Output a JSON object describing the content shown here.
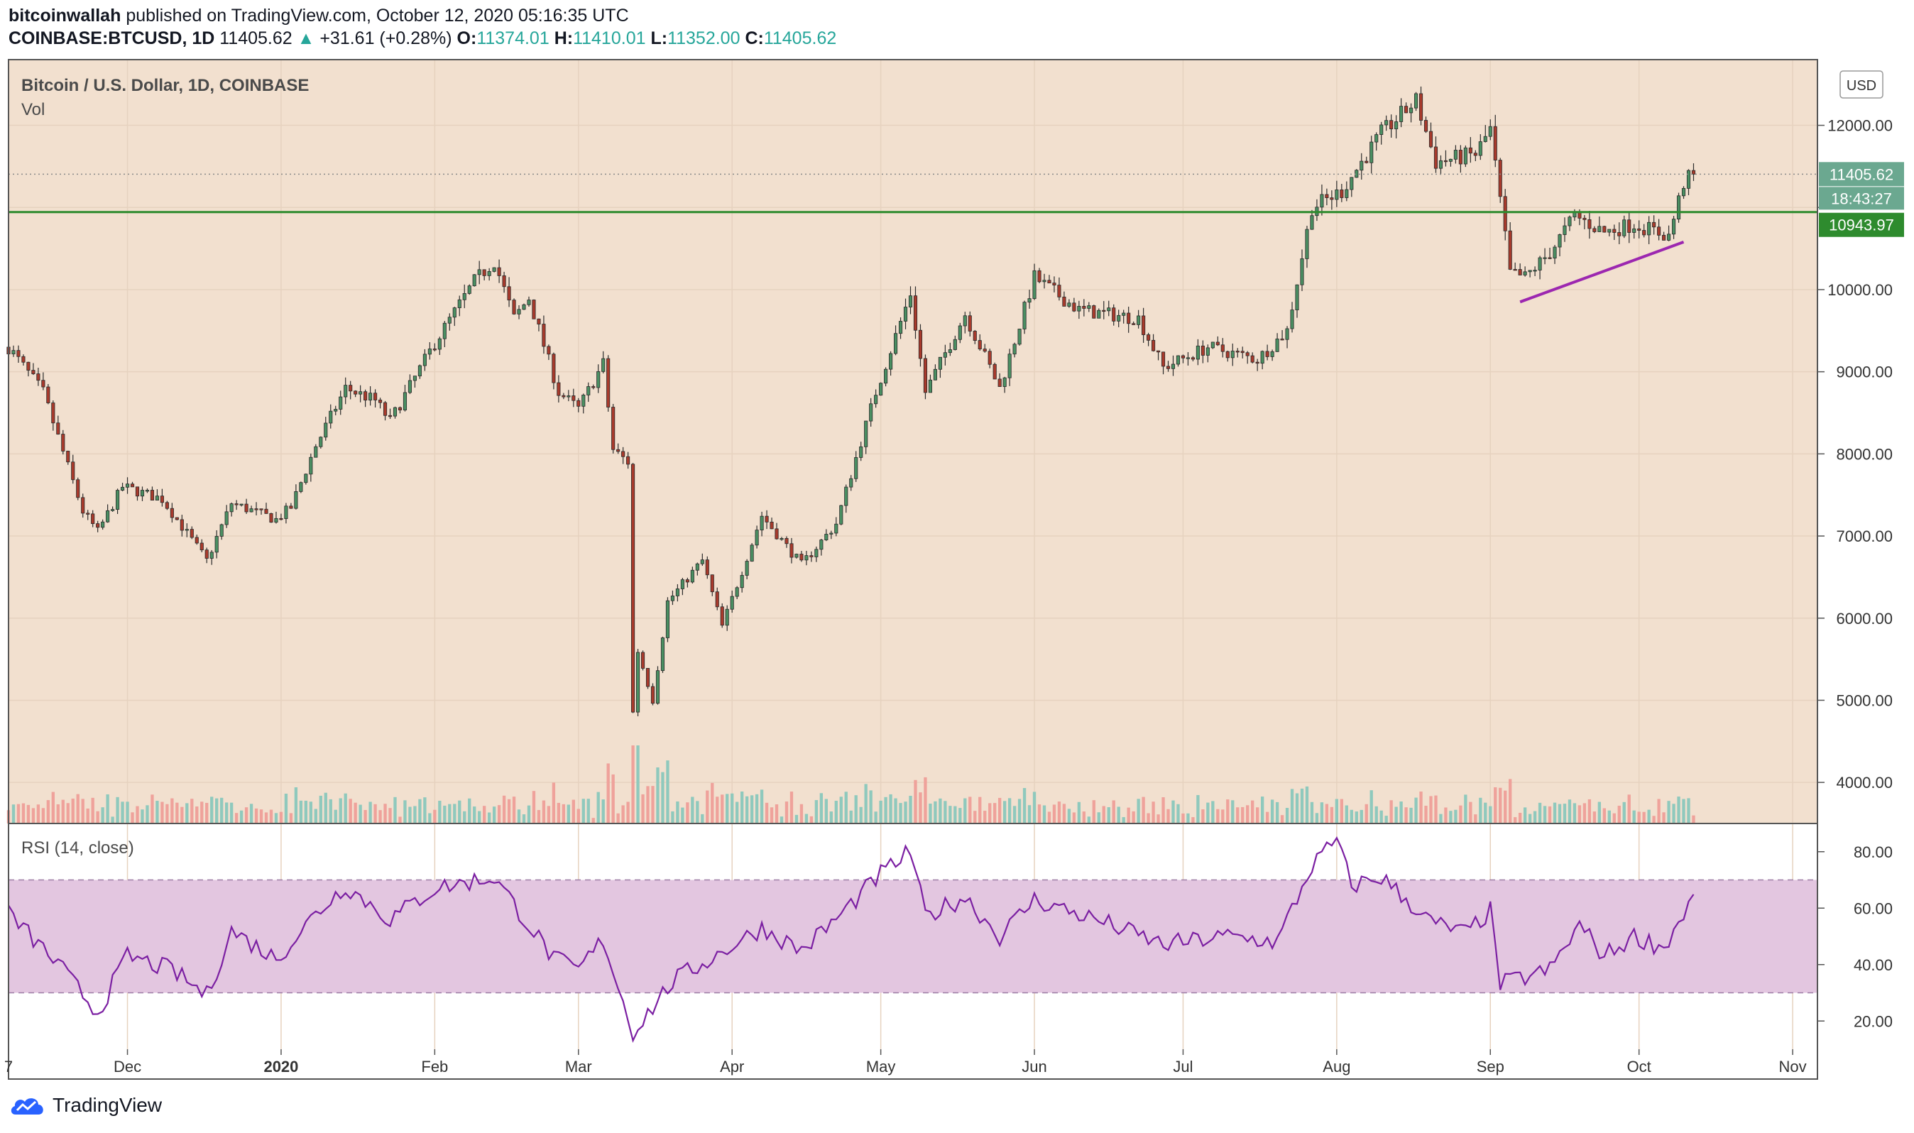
{
  "header": {
    "author": "bitcoinwallah",
    "published_text": "published on TradingView.com, October 12, 2020 05:16:35 UTC",
    "symbol": "COINBASE:BTCUSD, 1D",
    "last": "11405.62",
    "change": "+31.61 (+0.28%)",
    "open_label": "O:",
    "open": "11374.01",
    "high_label": "H:",
    "high": "11410.01",
    "low_label": "L:",
    "low": "11352.00",
    "close_label": "C:",
    "close": "11405.62"
  },
  "pane": {
    "title": "Bitcoin / U.S. Dollar, 1D, COINBASE",
    "vol_label": "Vol",
    "currency": "USD",
    "rsi_title": "RSI (14, close)",
    "price_badge": "11405.62",
    "countdown_badge": "18:43:27",
    "level_badge": "10943.97"
  },
  "footer": {
    "brand": "TradingView"
  },
  "colors": {
    "background": "#f2e0cf",
    "up": "#26a69a",
    "down": "#ef5350",
    "candle_body_up": "#4a8f62",
    "candle_body_down": "#a83a2c",
    "level_line": "#2e8b2e",
    "trendline": "#9c27b0",
    "rsi_line": "#7b1fa2",
    "rsi_band": "#e3c6e0"
  },
  "chart_data": {
    "type": "candlestick",
    "title": "Bitcoin / U.S. Dollar, 1D, COINBASE",
    "price_axis": {
      "min": 3500,
      "max": 12800,
      "ticks": [
        12000,
        11000,
        10000,
        9000,
        8000,
        7000,
        6000,
        5000,
        4000
      ],
      "tick_labels": [
        "12000.00",
        "",
        "10000.00",
        "9000.00",
        "8000.00",
        "7000.00",
        "6000.00",
        "5000.00",
        "4000.00"
      ]
    },
    "rsi_axis": {
      "min": 10,
      "max": 90,
      "ticks": [
        80,
        60,
        40,
        20
      ],
      "tick_labels": [
        "80.00",
        "60.00",
        "40.00",
        "20.00"
      ],
      "band": [
        30,
        70
      ]
    },
    "time_axis": {
      "start": "2019-11-07",
      "end": "2020-11-06",
      "labels": [
        {
          "date": "2019-11-07",
          "text": "7"
        },
        {
          "date": "2019-12-01",
          "text": "Dec"
        },
        {
          "date": "2020-01-01",
          "text": "2020"
        },
        {
          "date": "2020-02-01",
          "text": "Feb"
        },
        {
          "date": "2020-03-01",
          "text": "Mar"
        },
        {
          "date": "2020-04-01",
          "text": "Apr"
        },
        {
          "date": "2020-05-01",
          "text": "May"
        },
        {
          "date": "2020-06-01",
          "text": "Jun"
        },
        {
          "date": "2020-07-01",
          "text": "Jul"
        },
        {
          "date": "2020-08-01",
          "text": "Aug"
        },
        {
          "date": "2020-09-01",
          "text": "Sep"
        },
        {
          "date": "2020-10-01",
          "text": "Oct"
        },
        {
          "date": "2020-11-01",
          "text": "Nov"
        }
      ]
    },
    "price_keyframes": [
      {
        "date": "2019-11-07",
        "close": 9300
      },
      {
        "date": "2019-11-14",
        "close": 8750
      },
      {
        "date": "2019-11-22",
        "close": 7300
      },
      {
        "date": "2019-11-25",
        "close": 7050
      },
      {
        "date": "2019-11-30",
        "close": 7600
      },
      {
        "date": "2019-12-08",
        "close": 7450
      },
      {
        "date": "2019-12-17",
        "close": 6700
      },
      {
        "date": "2019-12-22",
        "close": 7400
      },
      {
        "date": "2019-12-31",
        "close": 7200
      },
      {
        "date": "2020-01-03",
        "close": 7350
      },
      {
        "date": "2020-01-08",
        "close": 8100
      },
      {
        "date": "2020-01-14",
        "close": 8800
      },
      {
        "date": "2020-01-20",
        "close": 8650
      },
      {
        "date": "2020-01-23",
        "close": 8400
      },
      {
        "date": "2020-02-01",
        "close": 9350
      },
      {
        "date": "2020-02-09",
        "close": 10100
      },
      {
        "date": "2020-02-13",
        "close": 10350
      },
      {
        "date": "2020-02-17",
        "close": 9650
      },
      {
        "date": "2020-02-20",
        "close": 9900
      },
      {
        "date": "2020-02-26",
        "close": 8750
      },
      {
        "date": "2020-03-01",
        "close": 8550
      },
      {
        "date": "2020-03-06",
        "close": 9100
      },
      {
        "date": "2020-03-08",
        "close": 8050
      },
      {
        "date": "2020-03-11",
        "close": 7900
      },
      {
        "date": "2020-03-12",
        "close": 4850
      },
      {
        "date": "2020-03-13",
        "close": 5600
      },
      {
        "date": "2020-03-16",
        "close": 5000
      },
      {
        "date": "2020-03-19",
        "close": 6200
      },
      {
        "date": "2020-03-26",
        "close": 6700
      },
      {
        "date": "2020-03-30",
        "close": 5900
      },
      {
        "date": "2020-04-07",
        "close": 7250
      },
      {
        "date": "2020-04-15",
        "close": 6650
      },
      {
        "date": "2020-04-22",
        "close": 7150
      },
      {
        "date": "2020-04-30",
        "close": 8750
      },
      {
        "date": "2020-05-07",
        "close": 9950
      },
      {
        "date": "2020-05-10",
        "close": 8750
      },
      {
        "date": "2020-05-18",
        "close": 9700
      },
      {
        "date": "2020-05-25",
        "close": 8800
      },
      {
        "date": "2020-06-01",
        "close": 10150
      },
      {
        "date": "2020-06-10",
        "close": 9750
      },
      {
        "date": "2020-06-22",
        "close": 9650
      },
      {
        "date": "2020-06-27",
        "close": 9050
      },
      {
        "date": "2020-07-06",
        "close": 9300
      },
      {
        "date": "2020-07-16",
        "close": 9150
      },
      {
        "date": "2020-07-22",
        "close": 9500
      },
      {
        "date": "2020-07-27",
        "close": 11000
      },
      {
        "date": "2020-08-02",
        "close": 11200
      },
      {
        "date": "2020-08-10",
        "close": 11900
      },
      {
        "date": "2020-08-17",
        "close": 12300
      },
      {
        "date": "2020-08-21",
        "close": 11550
      },
      {
        "date": "2020-08-29",
        "close": 11650
      },
      {
        "date": "2020-09-01",
        "close": 11950
      },
      {
        "date": "2020-09-05",
        "close": 10200
      },
      {
        "date": "2020-09-08",
        "close": 10150
      },
      {
        "date": "2020-09-13",
        "close": 10450
      },
      {
        "date": "2020-09-18",
        "close": 10900
      },
      {
        "date": "2020-09-24",
        "close": 10700
      },
      {
        "date": "2020-09-30",
        "close": 10800
      },
      {
        "date": "2020-10-07",
        "close": 10650
      },
      {
        "date": "2020-10-10",
        "close": 11300
      },
      {
        "date": "2020-10-12",
        "close": 11405.62
      }
    ],
    "rsi_keyframes": [
      {
        "date": "2019-11-07",
        "value": 58
      },
      {
        "date": "2019-11-17",
        "value": 40
      },
      {
        "date": "2019-11-25",
        "value": 23
      },
      {
        "date": "2019-12-01",
        "value": 43
      },
      {
        "date": "2019-12-10",
        "value": 38
      },
      {
        "date": "2019-12-17",
        "value": 29
      },
      {
        "date": "2019-12-22",
        "value": 52
      },
      {
        "date": "2019-12-31",
        "value": 42
      },
      {
        "date": "2020-01-08",
        "value": 58
      },
      {
        "date": "2020-01-14",
        "value": 68
      },
      {
        "date": "2020-01-23",
        "value": 56
      },
      {
        "date": "2020-02-01",
        "value": 67
      },
      {
        "date": "2020-02-13",
        "value": 71
      },
      {
        "date": "2020-02-25",
        "value": 42
      },
      {
        "date": "2020-03-01",
        "value": 38
      },
      {
        "date": "2020-03-06",
        "value": 49
      },
      {
        "date": "2020-03-12",
        "value": 16
      },
      {
        "date": "2020-03-20",
        "value": 34
      },
      {
        "date": "2020-04-07",
        "value": 53
      },
      {
        "date": "2020-04-15",
        "value": 45
      },
      {
        "date": "2020-04-22",
        "value": 56
      },
      {
        "date": "2020-05-01",
        "value": 72
      },
      {
        "date": "2020-05-07",
        "value": 80
      },
      {
        "date": "2020-05-10",
        "value": 57
      },
      {
        "date": "2020-05-18",
        "value": 64
      },
      {
        "date": "2020-05-25",
        "value": 50
      },
      {
        "date": "2020-06-01",
        "value": 63
      },
      {
        "date": "2020-06-15",
        "value": 55
      },
      {
        "date": "2020-06-27",
        "value": 47
      },
      {
        "date": "2020-07-10",
        "value": 50
      },
      {
        "date": "2020-07-20",
        "value": 48
      },
      {
        "date": "2020-07-27",
        "value": 75
      },
      {
        "date": "2020-08-01",
        "value": 84
      },
      {
        "date": "2020-08-04",
        "value": 68
      },
      {
        "date": "2020-08-10",
        "value": 71
      },
      {
        "date": "2020-08-20",
        "value": 55
      },
      {
        "date": "2020-08-27",
        "value": 51
      },
      {
        "date": "2020-09-01",
        "value": 59
      },
      {
        "date": "2020-09-03",
        "value": 33
      },
      {
        "date": "2020-09-13",
        "value": 38
      },
      {
        "date": "2020-09-19",
        "value": 54
      },
      {
        "date": "2020-09-24",
        "value": 43
      },
      {
        "date": "2020-09-30",
        "value": 50
      },
      {
        "date": "2020-10-06",
        "value": 46
      },
      {
        "date": "2020-10-12",
        "value": 64
      }
    ],
    "horizontal_level": {
      "value": 10943.97
    },
    "trendline": {
      "start": {
        "date": "2020-09-07",
        "price": 9850
      },
      "end": {
        "date": "2020-10-10",
        "price": 10580
      }
    }
  }
}
